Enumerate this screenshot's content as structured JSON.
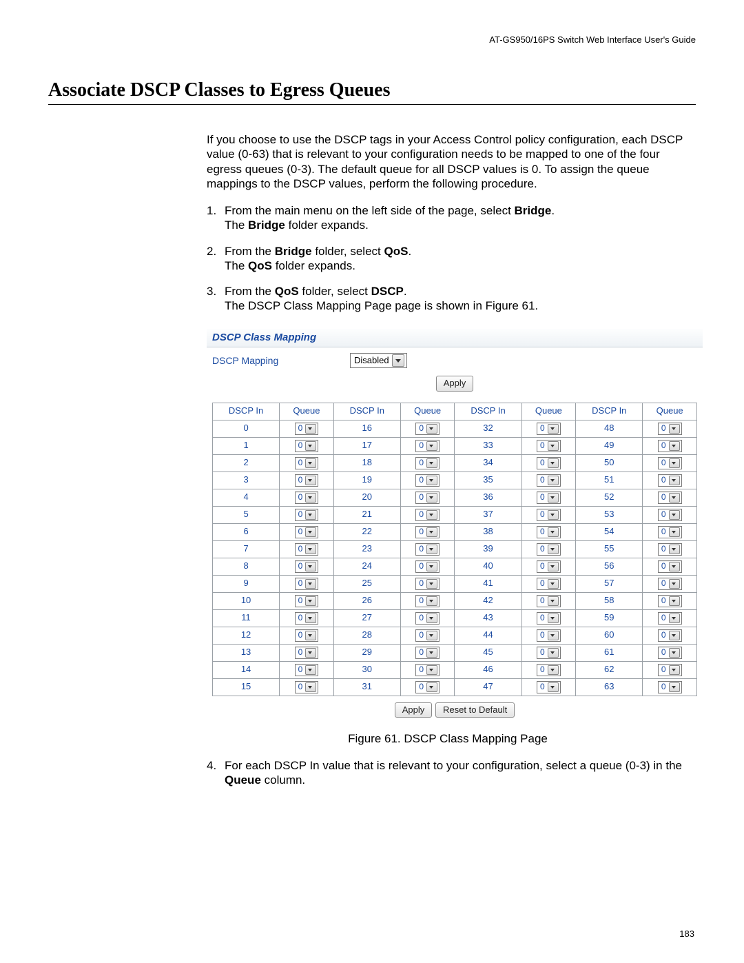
{
  "doc_header": "AT-GS950/16PS Switch Web Interface User's Guide",
  "title": "Associate DSCP Classes to Egress Queues",
  "intro": "If you choose to use the DSCP tags in your Access Control policy configuration, each DSCP value (0-63) that is relevant to your configuration needs to be mapped to one of the four egress queues (0-3). The default queue for all DSCP values is 0. To assign the queue mappings to the DSCP values, perform the following procedure.",
  "steps": {
    "s1a": "From the main menu on the left side of the page, select ",
    "s1b": "Bridge",
    "s1c": ".",
    "s1d": "The ",
    "s1e": "Bridge",
    "s1f": " folder expands.",
    "s2a": "From the ",
    "s2b": "Bridge",
    "s2c": " folder, select ",
    "s2d": "QoS",
    "s2e": ".",
    "s2f": "The ",
    "s2g": "QoS",
    "s2h": " folder expands.",
    "s3a": "From the ",
    "s3b": "QoS",
    "s3c": " folder, select ",
    "s3d": "DSCP",
    "s3e": ".",
    "s3f": "The DSCP Class Mapping Page page is shown in Figure 61.",
    "s4a": "For each DSCP In value that is relevant to your configuration, select a queue (0-3) in the ",
    "s4b": "Queue",
    "s4c": " column."
  },
  "shot": {
    "panel_title": "DSCP Class Mapping",
    "dscp_mapping_label": "DSCP Mapping",
    "dscp_mapping_value": "Disabled",
    "apply_label": "Apply",
    "reset_label": "Reset to Default",
    "headers": {
      "dscp": "DSCP In",
      "queue": "Queue"
    },
    "queue_value": "0",
    "dscp_rows": 16,
    "dscp_cols": 4
  },
  "figcaption": "Figure 61. DSCP Class Mapping Page",
  "page_number": "183"
}
